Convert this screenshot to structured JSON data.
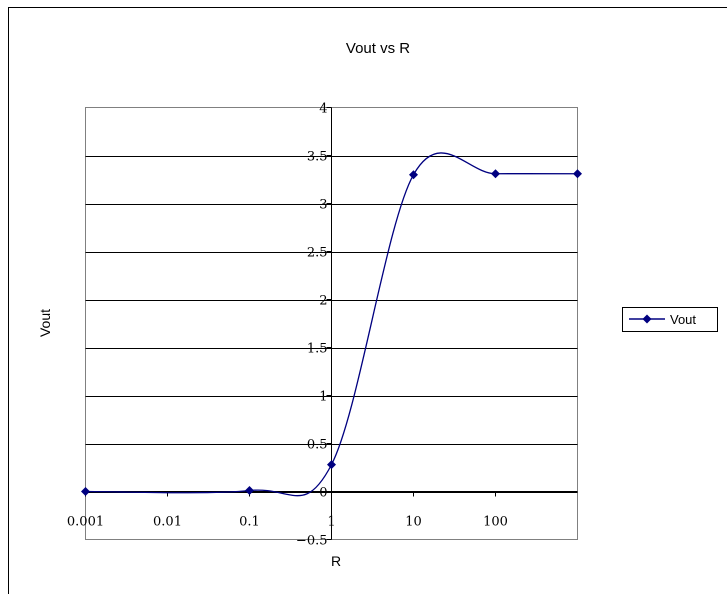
{
  "chart_data": {
    "type": "line",
    "title": "Vout vs R",
    "xlabel": "R",
    "ylabel": "Vout",
    "x_scale": "log",
    "x_ticks": [
      "0.001",
      "0.01",
      "0.1",
      "1",
      "10",
      "100"
    ],
    "y_ticks": [
      "-0.5",
      "0",
      "0.5",
      "1",
      "1.5",
      "2",
      "2.5",
      "3",
      "3.5",
      "4"
    ],
    "xlim": [
      0.001,
      1000
    ],
    "ylim": [
      -0.5,
      4
    ],
    "grid": "horizontal",
    "legend_position": "right",
    "series": [
      {
        "name": "Vout",
        "color": "#000080",
        "marker": "diamond",
        "smooth": true,
        "x": [
          0.001,
          0.1,
          1,
          10,
          100,
          1000
        ],
        "y": [
          0,
          0.01,
          0.28,
          3.3,
          3.31,
          3.31
        ]
      }
    ]
  }
}
